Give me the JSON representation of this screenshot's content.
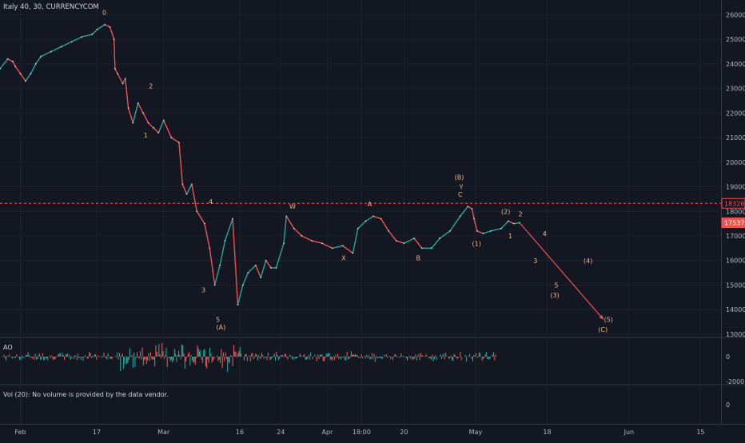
{
  "header": {
    "title": "Italy 40, 30, CURRENCYCOM"
  },
  "ao": {
    "label": "AO",
    "ticks": [
      0,
      -2000
    ]
  },
  "volume": {
    "label": "Vol (20): No volume is provided by the data vendor.",
    "ticks": [
      0
    ]
  },
  "colors": {
    "background": "#131722",
    "grid": "#1e222d",
    "up": "#26a69a",
    "down": "#ef5350",
    "wave_label": "#f0b48a",
    "hline": "#ef5350",
    "text": "#b2b5be"
  },
  "chart_data": {
    "type": "line",
    "ylim": [
      12900,
      26600
    ],
    "y_ticks": [
      13000,
      14000,
      15000,
      16000,
      17000,
      18000,
      19000,
      20000,
      21000,
      22000,
      23000,
      24000,
      25000,
      26000
    ],
    "x_ticks": [
      "Feb",
      "17",
      "Mar",
      "16",
      "24",
      "Apr",
      "18:00",
      "20",
      "May",
      "18",
      "Jun",
      "15"
    ],
    "x_tick_pos": [
      1,
      15.9,
      29,
      43.9,
      51.9,
      61,
      67.7,
      76,
      90,
      104,
      120,
      134
    ],
    "price_labels": [
      {
        "value": 18326,
        "text": "18326"
      },
      {
        "value": 17537,
        "text": "17537"
      }
    ],
    "hline": 18326,
    "series": [
      {
        "values": [
          [
            -3,
            23800
          ],
          [
            -1.5,
            24200
          ],
          [
            -0.5,
            24100
          ],
          [
            0,
            23900
          ],
          [
            1,
            23600
          ],
          [
            2,
            23300
          ],
          [
            3,
            23600
          ],
          [
            4,
            24000
          ],
          [
            5,
            24300
          ],
          [
            7,
            24500
          ],
          [
            9,
            24700
          ],
          [
            11,
            24900
          ],
          [
            13,
            25100
          ],
          [
            15,
            25200
          ],
          [
            16,
            25400
          ],
          [
            17.5,
            25600
          ],
          [
            18.5,
            25500
          ],
          [
            19.3,
            25000
          ],
          [
            19.5,
            23800
          ],
          [
            20,
            23600
          ],
          [
            21,
            23200
          ],
          [
            21.5,
            23400
          ],
          [
            22.1,
            22200
          ],
          [
            23,
            21600
          ],
          [
            24,
            22400
          ],
          [
            25,
            22000
          ],
          [
            26,
            21600
          ],
          [
            27,
            21400
          ],
          [
            28,
            21200
          ],
          [
            29,
            21700
          ],
          [
            30.5,
            21000
          ],
          [
            32,
            20800
          ],
          [
            32.7,
            19100
          ],
          [
            33.5,
            18700
          ],
          [
            34.5,
            19100
          ],
          [
            35.5,
            18000
          ],
          [
            37,
            17500
          ],
          [
            38,
            16500
          ],
          [
            39,
            15000
          ],
          [
            40,
            15800
          ],
          [
            41,
            16800
          ],
          [
            42.5,
            17700
          ],
          [
            43.5,
            14200
          ],
          [
            44.5,
            15000
          ],
          [
            45.5,
            15500
          ],
          [
            47,
            15800
          ],
          [
            48,
            15300
          ],
          [
            49,
            16000
          ],
          [
            50,
            15700
          ],
          [
            51,
            15700
          ],
          [
            52.5,
            16700
          ],
          [
            53,
            17800
          ],
          [
            54.5,
            17300
          ],
          [
            56,
            17000
          ],
          [
            58,
            16800
          ],
          [
            60,
            16700
          ],
          [
            62,
            16500
          ],
          [
            64,
            16600
          ],
          [
            66,
            16300
          ],
          [
            67,
            17300
          ],
          [
            68.5,
            17600
          ],
          [
            70,
            17800
          ],
          [
            71.5,
            17700
          ],
          [
            73,
            17200
          ],
          [
            74.5,
            16800
          ],
          [
            76,
            16700
          ],
          [
            78,
            16900
          ],
          [
            79.5,
            16500
          ],
          [
            81.4,
            16500
          ],
          [
            83,
            16900
          ],
          [
            85,
            17200
          ],
          [
            87,
            17800
          ],
          [
            88.5,
            18200
          ],
          [
            89.3,
            18100
          ],
          [
            89.7,
            17700
          ],
          [
            90.3,
            17200
          ],
          [
            91.5,
            17100
          ],
          [
            93,
            17200
          ],
          [
            95,
            17300
          ],
          [
            96.4,
            17600
          ],
          [
            97.5,
            17500
          ],
          [
            98.6,
            17537
          ]
        ]
      },
      {
        "name": "projection",
        "values": [
          [
            98.6,
            17537
          ],
          [
            115,
            13600
          ]
        ]
      }
    ],
    "annotations": [
      {
        "text": "0",
        "x": 17.4,
        "y": 26000
      },
      {
        "text": "2",
        "x": 26.5,
        "y": 23000
      },
      {
        "text": "1",
        "x": 25.5,
        "y": 21000
      },
      {
        "text": "4",
        "x": 38.2,
        "y": 18300
      },
      {
        "text": "3",
        "x": 36.8,
        "y": 14700
      },
      {
        "text": "5",
        "x": 39.6,
        "y": 13500
      },
      {
        "text": "(A)",
        "x": 40.2,
        "y": 13200
      },
      {
        "text": "W",
        "x": 54.2,
        "y": 18100
      },
      {
        "text": "X",
        "x": 64.2,
        "y": 16000
      },
      {
        "text": "A",
        "x": 69.3,
        "y": 18200
      },
      {
        "text": "B",
        "x": 78.8,
        "y": 16000
      },
      {
        "text": "(B)",
        "x": 86.8,
        "y": 19300
      },
      {
        "text": "Y",
        "x": 87.2,
        "y": 18900
      },
      {
        "text": "C",
        "x": 87,
        "y": 18600
      },
      {
        "text": "(1)",
        "x": 90.2,
        "y": 16600
      },
      {
        "text": "(2)",
        "x": 95.9,
        "y": 17900
      },
      {
        "text": "1",
        "x": 96.8,
        "y": 16900
      },
      {
        "text": "2",
        "x": 98.8,
        "y": 17800
      },
      {
        "text": "4",
        "x": 103.5,
        "y": 17000
      },
      {
        "text": "3",
        "x": 101.7,
        "y": 15900
      },
      {
        "text": "(4)",
        "x": 112,
        "y": 15900
      },
      {
        "text": "5",
        "x": 105.8,
        "y": 14900
      },
      {
        "text": "(3)",
        "x": 105.5,
        "y": 14500
      },
      {
        "text": "(5)",
        "x": 116,
        "y": 13500
      },
      {
        "text": "(C)",
        "x": 114.9,
        "y": 13100
      }
    ]
  }
}
